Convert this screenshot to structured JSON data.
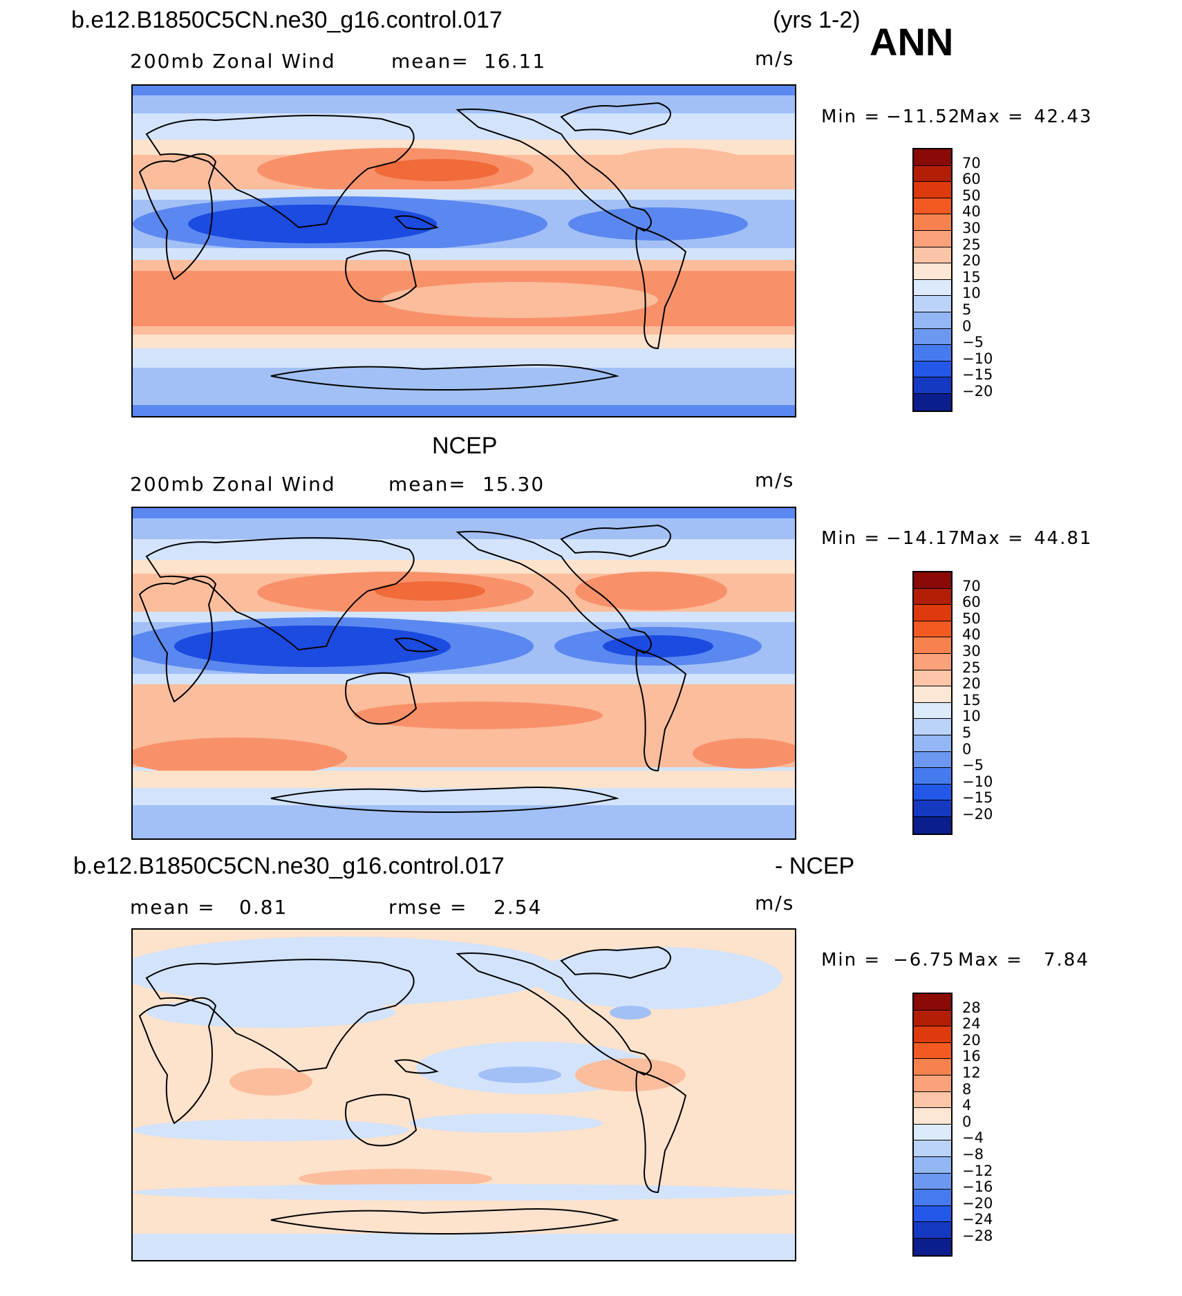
{
  "header": {
    "case_name": "b.e12.B1850C5CN.ne30_g16.control.017",
    "years": "(yrs 1-2)",
    "season": "ANN"
  },
  "panels": [
    {
      "id": "model",
      "title": "",
      "variable_label": "200mb Zonal Wind",
      "stat_label": "mean=",
      "stat_value": "16.11",
      "units": "m/s",
      "min_label": "Min =",
      "min_value": "−11.52",
      "max_label": "Max =",
      "max_value": "42.43",
      "colorbar_labels": [
        "70",
        "60",
        "50",
        "40",
        "30",
        "25",
        "20",
        "15",
        "10",
        "5",
        "0",
        "−5",
        "−10",
        "−15",
        "−20"
      ]
    },
    {
      "id": "obs",
      "title": "NCEP",
      "variable_label": "200mb Zonal Wind",
      "stat_label": "mean=",
      "stat_value": "15.30",
      "units": "m/s",
      "min_label": "Min =",
      "min_value": "−14.17",
      "max_label": "Max =",
      "max_value": "44.81",
      "colorbar_labels": [
        "70",
        "60",
        "50",
        "40",
        "30",
        "25",
        "20",
        "15",
        "10",
        "5",
        "0",
        "−5",
        "−10",
        "−15",
        "−20"
      ]
    },
    {
      "id": "diff",
      "title_left": "b.e12.B1850C5CN.ne30_g16.control.017",
      "title_right": "- NCEP",
      "mean_label": "mean =",
      "mean_value": "0.81",
      "rmse_label": "rmse =",
      "rmse_value": "2.54",
      "units": "m/s",
      "min_label": "Min =",
      "min_value": "−6.75",
      "max_label": "Max =",
      "max_value": "7.84",
      "colorbar_labels": [
        "28",
        "24",
        "20",
        "16",
        "12",
        "8",
        "4",
        "0",
        "−4",
        "−8",
        "−12",
        "−16",
        "−20",
        "−24",
        "−28"
      ]
    }
  ],
  "colorbar_colors": [
    "#8a0a05",
    "#b31e07",
    "#dd3a0e",
    "#f25a22",
    "#f7824e",
    "#fba27b",
    "#fcc5a7",
    "#fde6d4",
    "#dceafb",
    "#bbd3f8",
    "#93b6f4",
    "#6c98f1",
    "#467bf0",
    "#2358e8",
    "#1639c2",
    "#0b1e8e"
  ],
  "colors": {
    "neg_strong": "#1c4be0",
    "neg_mid": "#5b88f0",
    "neg_light": "#a2c0f6",
    "neg_pale": "#d2e3fb",
    "pos_pale": "#fde2cc",
    "pos_light": "#fbbd9c",
    "pos_mid": "#f8916a",
    "pos_strong": "#f06a3a",
    "coast": "#000000"
  }
}
